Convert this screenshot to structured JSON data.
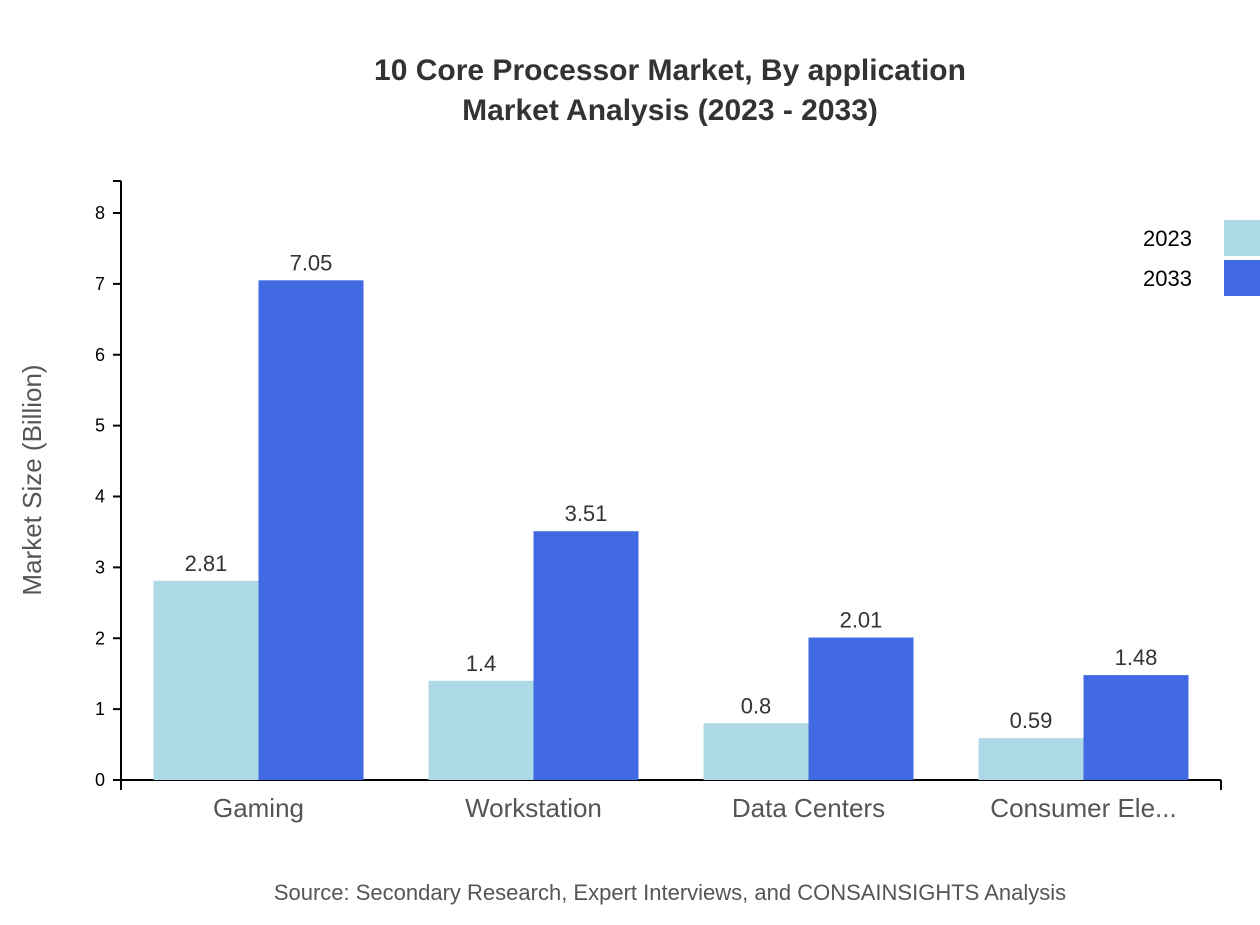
{
  "chart_data": {
    "type": "bar",
    "title": "10 Core Processor Market, By application",
    "subtitle": "Market Analysis (2023 - 2033)",
    "xlabel": "",
    "ylabel": "Market Size (Billion)",
    "ylim": [
      0,
      8.5
    ],
    "yticks": [
      "0",
      "1",
      "2",
      "3",
      "4",
      "5",
      "6",
      "7",
      "8"
    ],
    "categories": [
      "Gaming",
      "Workstation",
      "Data Centers",
      "Consumer Ele..."
    ],
    "series": [
      {
        "name": "2023",
        "color": "#ADD8E6",
        "values": [
          2.81,
          1.4,
          0.8,
          0.59
        ]
      },
      {
        "name": "2033",
        "color": "#4169E1",
        "values": [
          7.05,
          3.51,
          2.01,
          1.48
        ]
      }
    ],
    "grid": false,
    "legend_position": "top-right",
    "source": "Source: Secondary Research, Expert Interviews, and CONSAINSIGHTS Analysis"
  }
}
